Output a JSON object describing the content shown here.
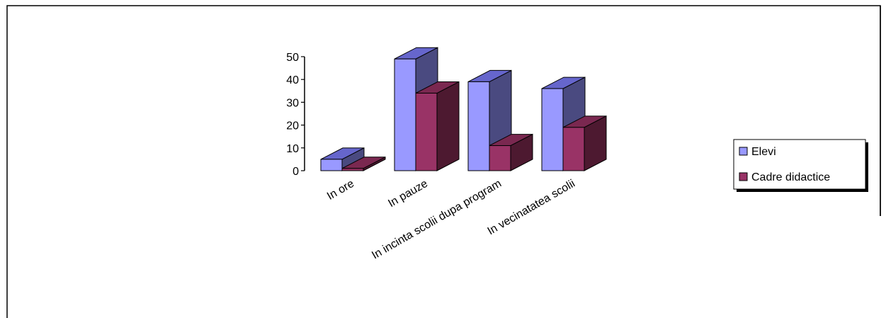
{
  "chart_data": {
    "type": "bar",
    "title": "",
    "xlabel": "",
    "ylabel": "",
    "ylim": [
      0,
      50
    ],
    "yticks": [
      0,
      10,
      20,
      30,
      40,
      50
    ],
    "categories": [
      "In ore",
      "In pauze",
      "In incinta scolii dupa program",
      "In vecinatatea scolii"
    ],
    "series": [
      {
        "name": "Elevi",
        "values": [
          5,
          49,
          39,
          36
        ]
      },
      {
        "name": "Cadre didactice",
        "values": [
          1,
          34,
          11,
          19
        ]
      }
    ],
    "grid": false,
    "legend_position": "right",
    "style": "3d-clustered-column"
  },
  "colors": {
    "elevi_front": "#9999ff",
    "elevi_top": "#6666cc",
    "elevi_side": "#4a4a80",
    "cadre_front": "#993366",
    "cadre_top": "#7a2850",
    "cadre_side": "#4d1930",
    "frame": "#000000"
  }
}
